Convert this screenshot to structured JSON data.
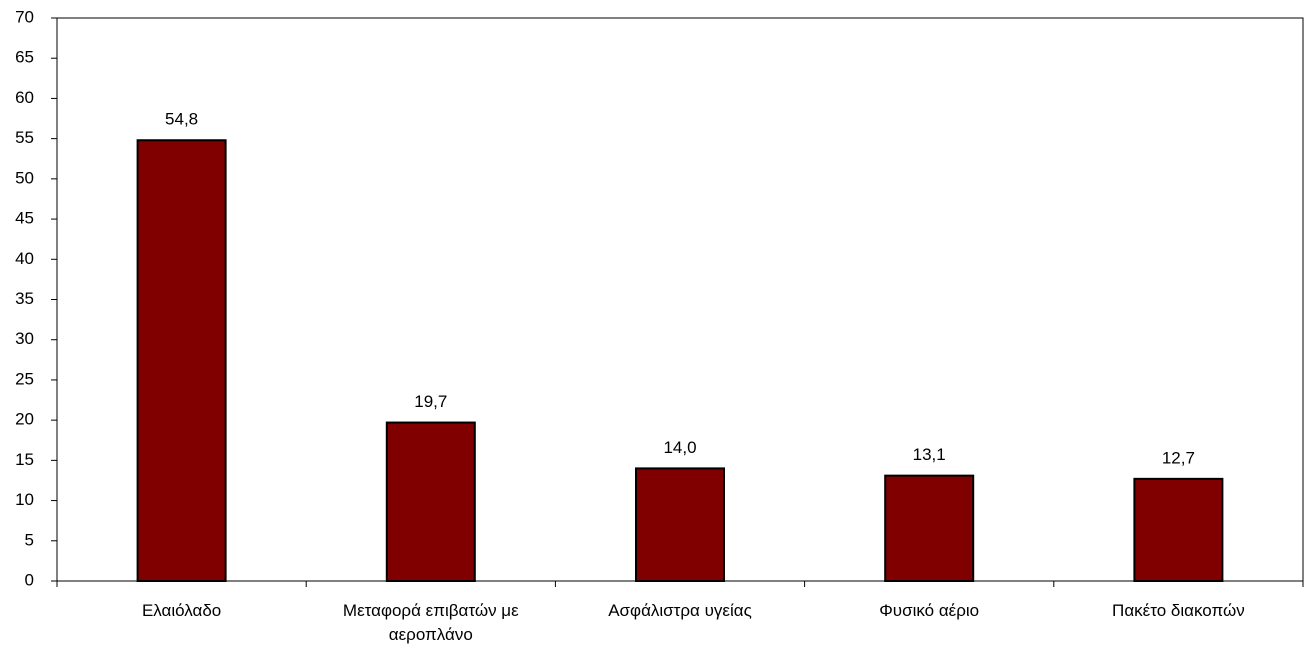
{
  "chart_data": {
    "type": "bar",
    "categories": [
      "Ελαιόλαδο",
      "Μεταφορά επιβατών με αεροπλάνο",
      "Ασφάλιστρα υγείας",
      "Φυσικό αέριο",
      "Πακέτο διακοπών"
    ],
    "values": [
      54.8,
      19.7,
      14.0,
      13.1,
      12.7
    ],
    "value_labels": [
      "54,8",
      "19,7",
      "14,0",
      "13,1",
      "12,7"
    ],
    "color": "#800000",
    "ylim": [
      0,
      70
    ],
    "yticks": [
      0,
      5,
      10,
      15,
      20,
      25,
      30,
      35,
      40,
      45,
      50,
      55,
      60,
      65,
      70
    ],
    "grid": false
  }
}
